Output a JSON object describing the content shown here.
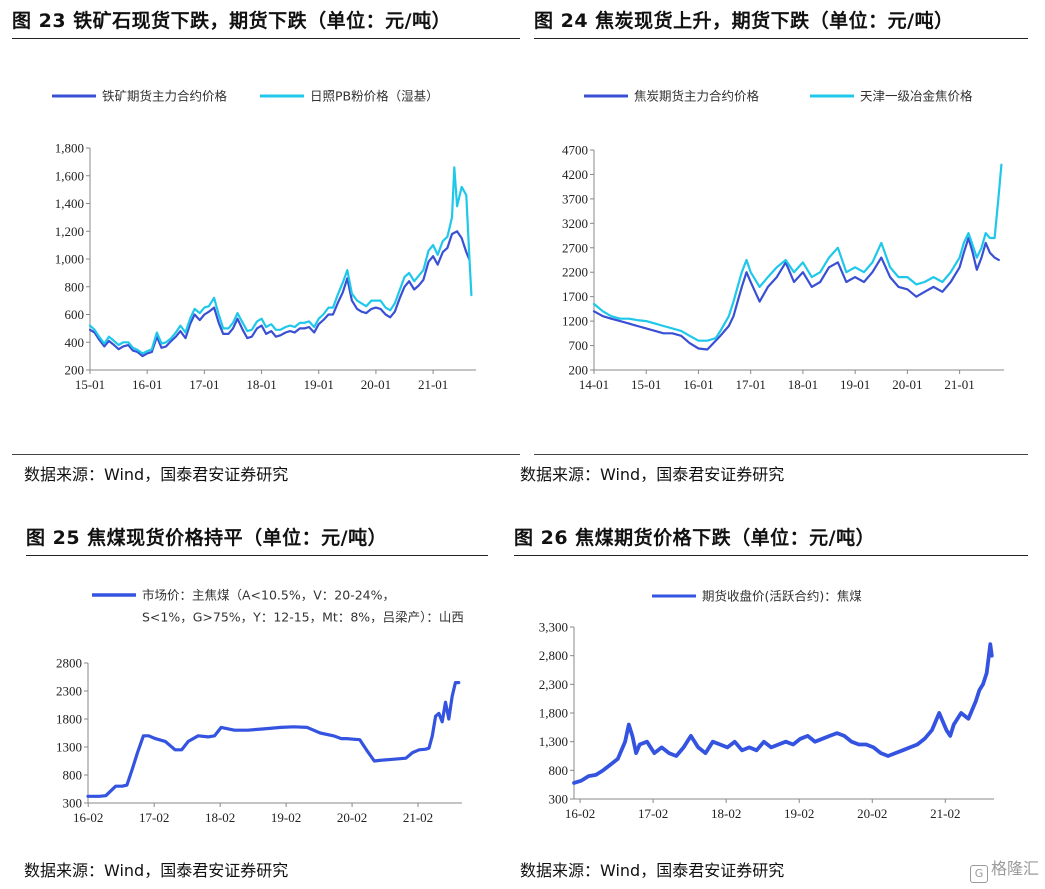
{
  "colors": {
    "dark_series": "#3a50d4",
    "light_series": "#1fc8ea",
    "single_series": "#3353e0",
    "axis": "#888888"
  },
  "watermark": {
    "icon": "g-logo-icon",
    "text": "格隆汇"
  },
  "chart_data": [
    {
      "type": "line",
      "title": "图 23 铁矿石现货下跌，期货下跌（单位：元/吨）",
      "source": "数据来源：Wind，国泰君安证券研究",
      "legend": [
        "铁矿期货主力合约价格",
        "日照PB粉价格（湿基）"
      ],
      "x_ticks": [
        "15-01",
        "16-01",
        "17-01",
        "18-01",
        "19-01",
        "20-01",
        "21-01"
      ],
      "y_ticks": [
        "200",
        "400",
        "600",
        "800",
        "1,000",
        "1,200",
        "1,400",
        "1,600",
        "1,800"
      ],
      "ylim": [
        200,
        1800
      ],
      "xlim": [
        2015.0,
        2021.75
      ],
      "series": [
        {
          "name": "铁矿期货主力合约价格",
          "style": "dark",
          "x": [
            2015.0,
            2015.08,
            2015.16,
            2015.25,
            2015.33,
            2015.42,
            2015.5,
            2015.58,
            2015.67,
            2015.75,
            2015.83,
            2015.92,
            2016.0,
            2016.08,
            2016.17,
            2016.25,
            2016.33,
            2016.42,
            2016.5,
            2016.58,
            2016.67,
            2016.75,
            2016.83,
            2016.92,
            2017.0,
            2017.08,
            2017.17,
            2017.25,
            2017.33,
            2017.42,
            2017.5,
            2017.58,
            2017.67,
            2017.75,
            2017.83,
            2017.92,
            2018.0,
            2018.08,
            2018.17,
            2018.25,
            2018.33,
            2018.42,
            2018.5,
            2018.58,
            2018.67,
            2018.75,
            2018.83,
            2018.92,
            2019.0,
            2019.08,
            2019.17,
            2019.25,
            2019.33,
            2019.42,
            2019.5,
            2019.58,
            2019.67,
            2019.75,
            2019.83,
            2019.92,
            2020.0,
            2020.08,
            2020.17,
            2020.25,
            2020.33,
            2020.42,
            2020.5,
            2020.58,
            2020.67,
            2020.75,
            2020.83,
            2020.92,
            2021.0,
            2021.08,
            2021.17,
            2021.25,
            2021.33,
            2021.42,
            2021.5,
            2021.58,
            2021.63
          ],
          "y": [
            490,
            470,
            420,
            370,
            410,
            380,
            350,
            370,
            380,
            340,
            330,
            300,
            320,
            330,
            440,
            360,
            370,
            410,
            440,
            480,
            430,
            530,
            600,
            560,
            600,
            620,
            650,
            540,
            460,
            460,
            500,
            570,
            490,
            430,
            440,
            500,
            520,
            460,
            480,
            440,
            450,
            470,
            480,
            470,
            500,
            500,
            510,
            470,
            530,
            560,
            600,
            600,
            680,
            760,
            860,
            700,
            640,
            620,
            610,
            640,
            650,
            640,
            600,
            580,
            620,
            720,
            800,
            840,
            780,
            810,
            850,
            980,
            1020,
            960,
            1050,
            1080,
            1180,
            1200,
            1150,
            1050,
            1000
          ]
        },
        {
          "name": "日照PB粉价格（湿基）",
          "style": "light",
          "x": [
            2015.0,
            2015.08,
            2015.16,
            2015.25,
            2015.33,
            2015.42,
            2015.5,
            2015.58,
            2015.67,
            2015.75,
            2015.83,
            2015.92,
            2016.0,
            2016.08,
            2016.17,
            2016.25,
            2016.33,
            2016.42,
            2016.5,
            2016.58,
            2016.67,
            2016.75,
            2016.83,
            2016.92,
            2017.0,
            2017.08,
            2017.17,
            2017.25,
            2017.33,
            2017.42,
            2017.5,
            2017.58,
            2017.67,
            2017.75,
            2017.83,
            2017.92,
            2018.0,
            2018.08,
            2018.17,
            2018.25,
            2018.33,
            2018.42,
            2018.5,
            2018.58,
            2018.67,
            2018.75,
            2018.83,
            2018.92,
            2019.0,
            2019.08,
            2019.17,
            2019.25,
            2019.33,
            2019.42,
            2019.5,
            2019.58,
            2019.67,
            2019.75,
            2019.83,
            2019.92,
            2020.0,
            2020.08,
            2020.17,
            2020.25,
            2020.33,
            2020.42,
            2020.5,
            2020.58,
            2020.67,
            2020.75,
            2020.83,
            2020.92,
            2021.0,
            2021.08,
            2021.17,
            2021.25,
            2021.33,
            2021.37,
            2021.42,
            2021.5,
            2021.58,
            2021.63,
            2021.67
          ],
          "y": [
            520,
            490,
            440,
            390,
            440,
            410,
            380,
            400,
            400,
            360,
            345,
            320,
            335,
            350,
            470,
            390,
            400,
            430,
            470,
            520,
            470,
            570,
            640,
            610,
            650,
            660,
            720,
            600,
            500,
            500,
            540,
            610,
            540,
            480,
            490,
            550,
            570,
            510,
            530,
            490,
            490,
            510,
            520,
            510,
            540,
            540,
            550,
            510,
            570,
            600,
            650,
            650,
            740,
            830,
            920,
            750,
            700,
            680,
            660,
            700,
            700,
            700,
            650,
            630,
            680,
            780,
            870,
            900,
            840,
            880,
            920,
            1060,
            1100,
            1030,
            1130,
            1160,
            1300,
            1660,
            1380,
            1520,
            1460,
            1050,
            740
          ]
        }
      ]
    },
    {
      "type": "line",
      "title": "图 24 焦炭现货上升，期货下跌（单位：元/吨）",
      "source": "数据来源：Wind，国泰君安证券研究",
      "legend": [
        "焦炭期货主力合约价格",
        "天津一级冶金焦价格"
      ],
      "x_ticks": [
        "14-01",
        "15-01",
        "16-01",
        "17-01",
        "18-01",
        "19-01",
        "20-01",
        "21-01"
      ],
      "y_ticks": [
        "200",
        "700",
        "1200",
        "1700",
        "2200",
        "2700",
        "3200",
        "3700",
        "4200",
        "4700"
      ],
      "ylim": [
        200,
        4700
      ],
      "xlim": [
        2014.0,
        2021.85
      ],
      "series": [
        {
          "name": "焦炭期货主力合约价格",
          "style": "dark",
          "x": [
            2014.0,
            2014.17,
            2014.33,
            2014.5,
            2014.67,
            2014.83,
            2015.0,
            2015.17,
            2015.33,
            2015.5,
            2015.67,
            2015.83,
            2016.0,
            2016.17,
            2016.33,
            2016.42,
            2016.5,
            2016.58,
            2016.67,
            2016.75,
            2016.83,
            2016.92,
            2017.0,
            2017.17,
            2017.33,
            2017.5,
            2017.67,
            2017.83,
            2018.0,
            2018.17,
            2018.33,
            2018.5,
            2018.67,
            2018.83,
            2019.0,
            2019.17,
            2019.33,
            2019.5,
            2019.67,
            2019.83,
            2020.0,
            2020.17,
            2020.33,
            2020.5,
            2020.67,
            2020.83,
            2021.0,
            2021.08,
            2021.17,
            2021.25,
            2021.33,
            2021.42,
            2021.5,
            2021.58,
            2021.67,
            2021.75
          ],
          "y": [
            1400,
            1300,
            1250,
            1200,
            1150,
            1100,
            1050,
            1000,
            950,
            950,
            900,
            750,
            640,
            620,
            800,
            900,
            1000,
            1100,
            1300,
            1600,
            1900,
            2200,
            2000,
            1600,
            1900,
            2100,
            2400,
            2000,
            2200,
            1900,
            2000,
            2300,
            2400,
            2000,
            2100,
            2000,
            2200,
            2500,
            2100,
            1900,
            1850,
            1700,
            1800,
            1900,
            1800,
            2000,
            2300,
            2600,
            2900,
            2600,
            2250,
            2500,
            2800,
            2600,
            2500,
            2450
          ]
        },
        {
          "name": "天津一级冶金焦价格",
          "style": "light",
          "x": [
            2014.0,
            2014.17,
            2014.33,
            2014.5,
            2014.67,
            2014.83,
            2015.0,
            2015.17,
            2015.33,
            2015.5,
            2015.67,
            2015.83,
            2016.0,
            2016.17,
            2016.33,
            2016.42,
            2016.5,
            2016.58,
            2016.67,
            2016.75,
            2016.83,
            2016.92,
            2017.0,
            2017.17,
            2017.33,
            2017.5,
            2017.67,
            2017.83,
            2018.0,
            2018.17,
            2018.33,
            2018.5,
            2018.67,
            2018.83,
            2019.0,
            2019.17,
            2019.33,
            2019.5,
            2019.67,
            2019.83,
            2020.0,
            2020.17,
            2020.33,
            2020.5,
            2020.67,
            2020.83,
            2021.0,
            2021.08,
            2021.17,
            2021.25,
            2021.33,
            2021.42,
            2021.5,
            2021.58,
            2021.67,
            2021.75,
            2021.8
          ],
          "y": [
            1550,
            1400,
            1300,
            1250,
            1250,
            1220,
            1200,
            1150,
            1100,
            1050,
            1000,
            900,
            800,
            800,
            850,
            1000,
            1150,
            1300,
            1600,
            1900,
            2200,
            2450,
            2200,
            1900,
            2100,
            2300,
            2450,
            2200,
            2400,
            2100,
            2200,
            2500,
            2700,
            2200,
            2300,
            2200,
            2400,
            2800,
            2300,
            2100,
            2100,
            1950,
            2000,
            2100,
            2000,
            2200,
            2500,
            2800,
            3000,
            2750,
            2500,
            2700,
            3000,
            2900,
            2900,
            3800,
            4400
          ]
        }
      ]
    },
    {
      "type": "line",
      "title": "图 25 焦煤现货价格持平（单位：元/吨）",
      "source": "数据来源：Wind，国泰君安证券研究",
      "legend": [
        "市场价：主焦煤（A<10.5%，V：20-24%，",
        "S<1%，G>75%，Y：12-15，Mt：8%，吕梁产）：山西"
      ],
      "x_ticks": [
        "16-02",
        "17-02",
        "18-02",
        "19-02",
        "20-02",
        "21-02"
      ],
      "y_ticks": [
        "300",
        "800",
        "1300",
        "1800",
        "2300",
        "2800"
      ],
      "ylim": [
        300,
        2800
      ],
      "xlim": [
        2016.08,
        2021.75
      ],
      "series": [
        {
          "name": "市场价：主焦煤（A<10.5%，V：20-24%，S<1%，G>75%，Y：12-15，Mt：8%，吕梁产）：山西",
          "style": "single",
          "x": [
            2016.08,
            2016.25,
            2016.35,
            2016.5,
            2016.6,
            2016.67,
            2016.75,
            2016.83,
            2016.92,
            2017.0,
            2017.1,
            2017.25,
            2017.4,
            2017.5,
            2017.6,
            2017.75,
            2017.9,
            2018.0,
            2018.1,
            2018.3,
            2018.5,
            2018.7,
            2018.9,
            2019.0,
            2019.2,
            2019.4,
            2019.5,
            2019.6,
            2019.8,
            2019.92,
            2020.0,
            2020.1,
            2020.2,
            2020.3,
            2020.42,
            2020.5,
            2020.7,
            2020.9,
            2021.0,
            2021.1,
            2021.2,
            2021.25,
            2021.3,
            2021.35,
            2021.4,
            2021.45,
            2021.5,
            2021.55,
            2021.6,
            2021.65,
            2021.7
          ],
          "y": [
            420,
            420,
            430,
            600,
            600,
            620,
            900,
            1200,
            1500,
            1500,
            1450,
            1400,
            1250,
            1250,
            1400,
            1500,
            1480,
            1500,
            1650,
            1600,
            1600,
            1620,
            1640,
            1650,
            1660,
            1650,
            1600,
            1550,
            1500,
            1450,
            1450,
            1440,
            1430,
            1250,
            1050,
            1060,
            1080,
            1100,
            1200,
            1250,
            1260,
            1280,
            1500,
            1850,
            1900,
            1750,
            2100,
            1800,
            2200,
            2450,
            2450
          ]
        }
      ]
    },
    {
      "type": "line",
      "title": "图 26 焦煤期货价格下跌（单位：元/吨）",
      "source": "数据来源：Wind，国泰君安证券研究",
      "legend": [
        "期货收盘价(活跃合约)：焦煤"
      ],
      "x_ticks": [
        "16-02",
        "17-02",
        "18-02",
        "19-02",
        "20-02",
        "21-02"
      ],
      "y_ticks": [
        "300",
        "800",
        "1,300",
        "1,800",
        "2,300",
        "2,800",
        "3,300"
      ],
      "ylim": [
        300,
        3300
      ],
      "xlim": [
        2016.0,
        2021.75
      ],
      "series": [
        {
          "name": "期货收盘价(活跃合约)：焦煤",
          "style": "single",
          "x": [
            2016.0,
            2016.1,
            2016.2,
            2016.3,
            2016.4,
            2016.5,
            2016.6,
            2016.7,
            2016.75,
            2016.8,
            2016.85,
            2016.9,
            2017.0,
            2017.1,
            2017.2,
            2017.3,
            2017.4,
            2017.5,
            2017.6,
            2017.7,
            2017.8,
            2017.9,
            2018.0,
            2018.1,
            2018.2,
            2018.3,
            2018.4,
            2018.5,
            2018.6,
            2018.7,
            2018.8,
            2018.9,
            2019.0,
            2019.1,
            2019.2,
            2019.3,
            2019.4,
            2019.5,
            2019.6,
            2019.7,
            2019.8,
            2019.9,
            2020.0,
            2020.1,
            2020.2,
            2020.3,
            2020.4,
            2020.5,
            2020.6,
            2020.7,
            2020.8,
            2020.9,
            2021.0,
            2021.1,
            2021.15,
            2021.2,
            2021.3,
            2021.4,
            2021.5,
            2021.55,
            2021.6,
            2021.65,
            2021.7,
            2021.72
          ],
          "y": [
            580,
            620,
            700,
            720,
            800,
            900,
            1000,
            1300,
            1600,
            1400,
            1100,
            1250,
            1300,
            1100,
            1200,
            1100,
            1050,
            1200,
            1400,
            1200,
            1100,
            1300,
            1250,
            1200,
            1300,
            1150,
            1200,
            1150,
            1300,
            1200,
            1250,
            1300,
            1250,
            1350,
            1400,
            1300,
            1350,
            1400,
            1450,
            1400,
            1300,
            1250,
            1250,
            1200,
            1100,
            1050,
            1100,
            1150,
            1200,
            1250,
            1350,
            1500,
            1800,
            1500,
            1400,
            1600,
            1800,
            1700,
            2000,
            2200,
            2300,
            2500,
            3000,
            2800
          ]
        }
      ]
    }
  ]
}
